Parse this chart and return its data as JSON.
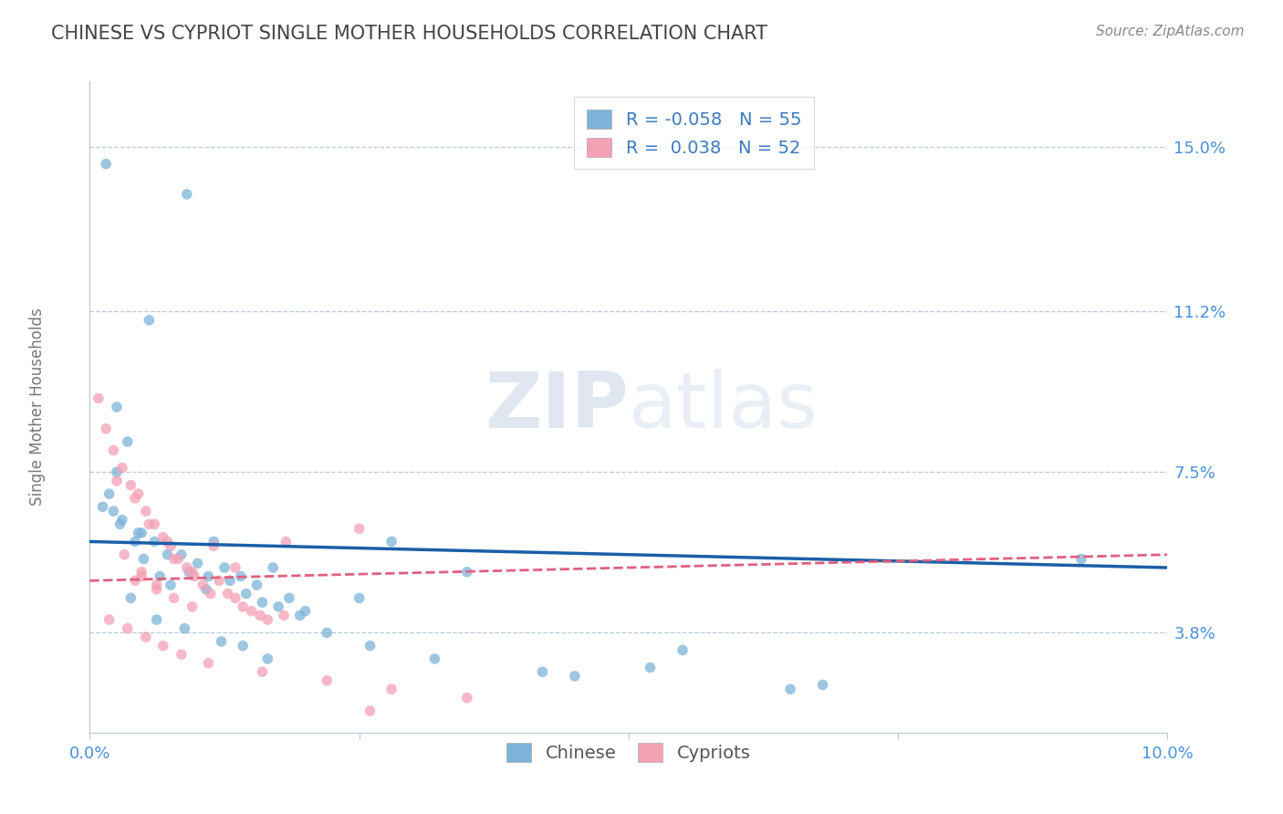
{
  "title": "CHINESE VS CYPRIOT SINGLE MOTHER HOUSEHOLDS CORRELATION CHART",
  "source_text": "Source: ZipAtlas.com",
  "ylabel": "Single Mother Households",
  "xlim": [
    0.0,
    10.0
  ],
  "ylim": [
    1.5,
    16.5
  ],
  "yticks": [
    3.8,
    7.5,
    11.2,
    15.0
  ],
  "ytick_labels": [
    "3.8%",
    "7.5%",
    "11.2%",
    "15.0%"
  ],
  "xticks": [
    0.0,
    2.5,
    5.0,
    7.5,
    10.0
  ],
  "xtick_labels": [
    "0.0%",
    "",
    "",
    "",
    "10.0%"
  ],
  "chinese_color": "#7db3d8",
  "cypriot_color": "#f4a0b5",
  "trend_chinese_color": "#1a5fa8",
  "trend_cypriot_color": "#e06080",
  "R_chinese": -0.058,
  "R_cypriot": 0.038,
  "N_chinese": 55,
  "N_cypriot": 52,
  "watermark": "ZIPatlas",
  "background_color": "#ffffff",
  "grid_color": "#b8c8d8",
  "chinese_x": [
    0.15,
    0.9,
    0.55,
    0.25,
    0.35,
    0.25,
    0.18,
    0.12,
    0.3,
    0.45,
    0.6,
    0.85,
    1.0,
    1.1,
    1.25,
    1.4,
    1.55,
    1.7,
    1.85,
    2.0,
    0.28,
    0.42,
    0.5,
    0.65,
    0.75,
    0.92,
    1.08,
    1.3,
    1.45,
    1.6,
    1.75,
    1.95,
    2.5,
    2.8,
    3.5,
    5.5,
    5.2,
    4.5,
    6.5,
    9.2,
    0.22,
    0.48,
    0.72,
    1.15,
    0.38,
    0.62,
    0.88,
    1.22,
    1.42,
    1.65,
    2.2,
    2.6,
    3.2,
    4.2,
    6.8
  ],
  "chinese_y": [
    14.6,
    13.9,
    11.0,
    9.0,
    8.2,
    7.5,
    7.0,
    6.7,
    6.4,
    6.1,
    5.9,
    5.6,
    5.4,
    5.1,
    5.3,
    5.1,
    4.9,
    5.3,
    4.6,
    4.3,
    6.3,
    5.9,
    5.5,
    5.1,
    4.9,
    5.2,
    4.8,
    5.0,
    4.7,
    4.5,
    4.4,
    4.2,
    4.6,
    5.9,
    5.2,
    3.4,
    3.0,
    2.8,
    2.5,
    5.5,
    6.6,
    6.1,
    5.6,
    5.9,
    4.6,
    4.1,
    3.9,
    3.6,
    3.5,
    3.2,
    3.8,
    3.5,
    3.2,
    2.9,
    2.6
  ],
  "cypriot_x": [
    0.08,
    0.15,
    0.22,
    0.3,
    0.38,
    0.45,
    0.52,
    0.6,
    0.68,
    0.75,
    0.82,
    0.9,
    0.97,
    1.05,
    1.12,
    1.2,
    1.28,
    1.35,
    1.42,
    1.5,
    1.58,
    1.65,
    0.25,
    0.42,
    0.55,
    0.72,
    0.32,
    0.48,
    0.62,
    0.78,
    0.95,
    1.8,
    0.18,
    0.35,
    0.52,
    0.68,
    0.85,
    1.1,
    1.6,
    2.2,
    2.8,
    3.5,
    2.5,
    0.78,
    0.95,
    1.15,
    1.35,
    0.42,
    0.62,
    0.48,
    1.82,
    2.6
  ],
  "cypriot_y": [
    9.2,
    8.5,
    8.0,
    7.6,
    7.2,
    7.0,
    6.6,
    6.3,
    6.0,
    5.8,
    5.5,
    5.3,
    5.1,
    4.9,
    4.7,
    5.0,
    4.7,
    4.6,
    4.4,
    4.3,
    4.2,
    4.1,
    7.3,
    6.9,
    6.3,
    5.9,
    5.6,
    5.2,
    4.9,
    4.6,
    4.4,
    4.2,
    4.1,
    3.9,
    3.7,
    3.5,
    3.3,
    3.1,
    2.9,
    2.7,
    2.5,
    2.3,
    6.2,
    5.5,
    5.2,
    5.8,
    5.3,
    5.0,
    4.8,
    5.1,
    5.9,
    2.0
  ],
  "trend_chinese_x0": 0.0,
  "trend_chinese_y0": 5.9,
  "trend_chinese_x1": 10.0,
  "trend_chinese_y1": 5.3,
  "trend_cypriot_x0": 0.0,
  "trend_cypriot_y0": 5.0,
  "trend_cypriot_x1": 10.0,
  "trend_cypriot_y1": 5.6
}
